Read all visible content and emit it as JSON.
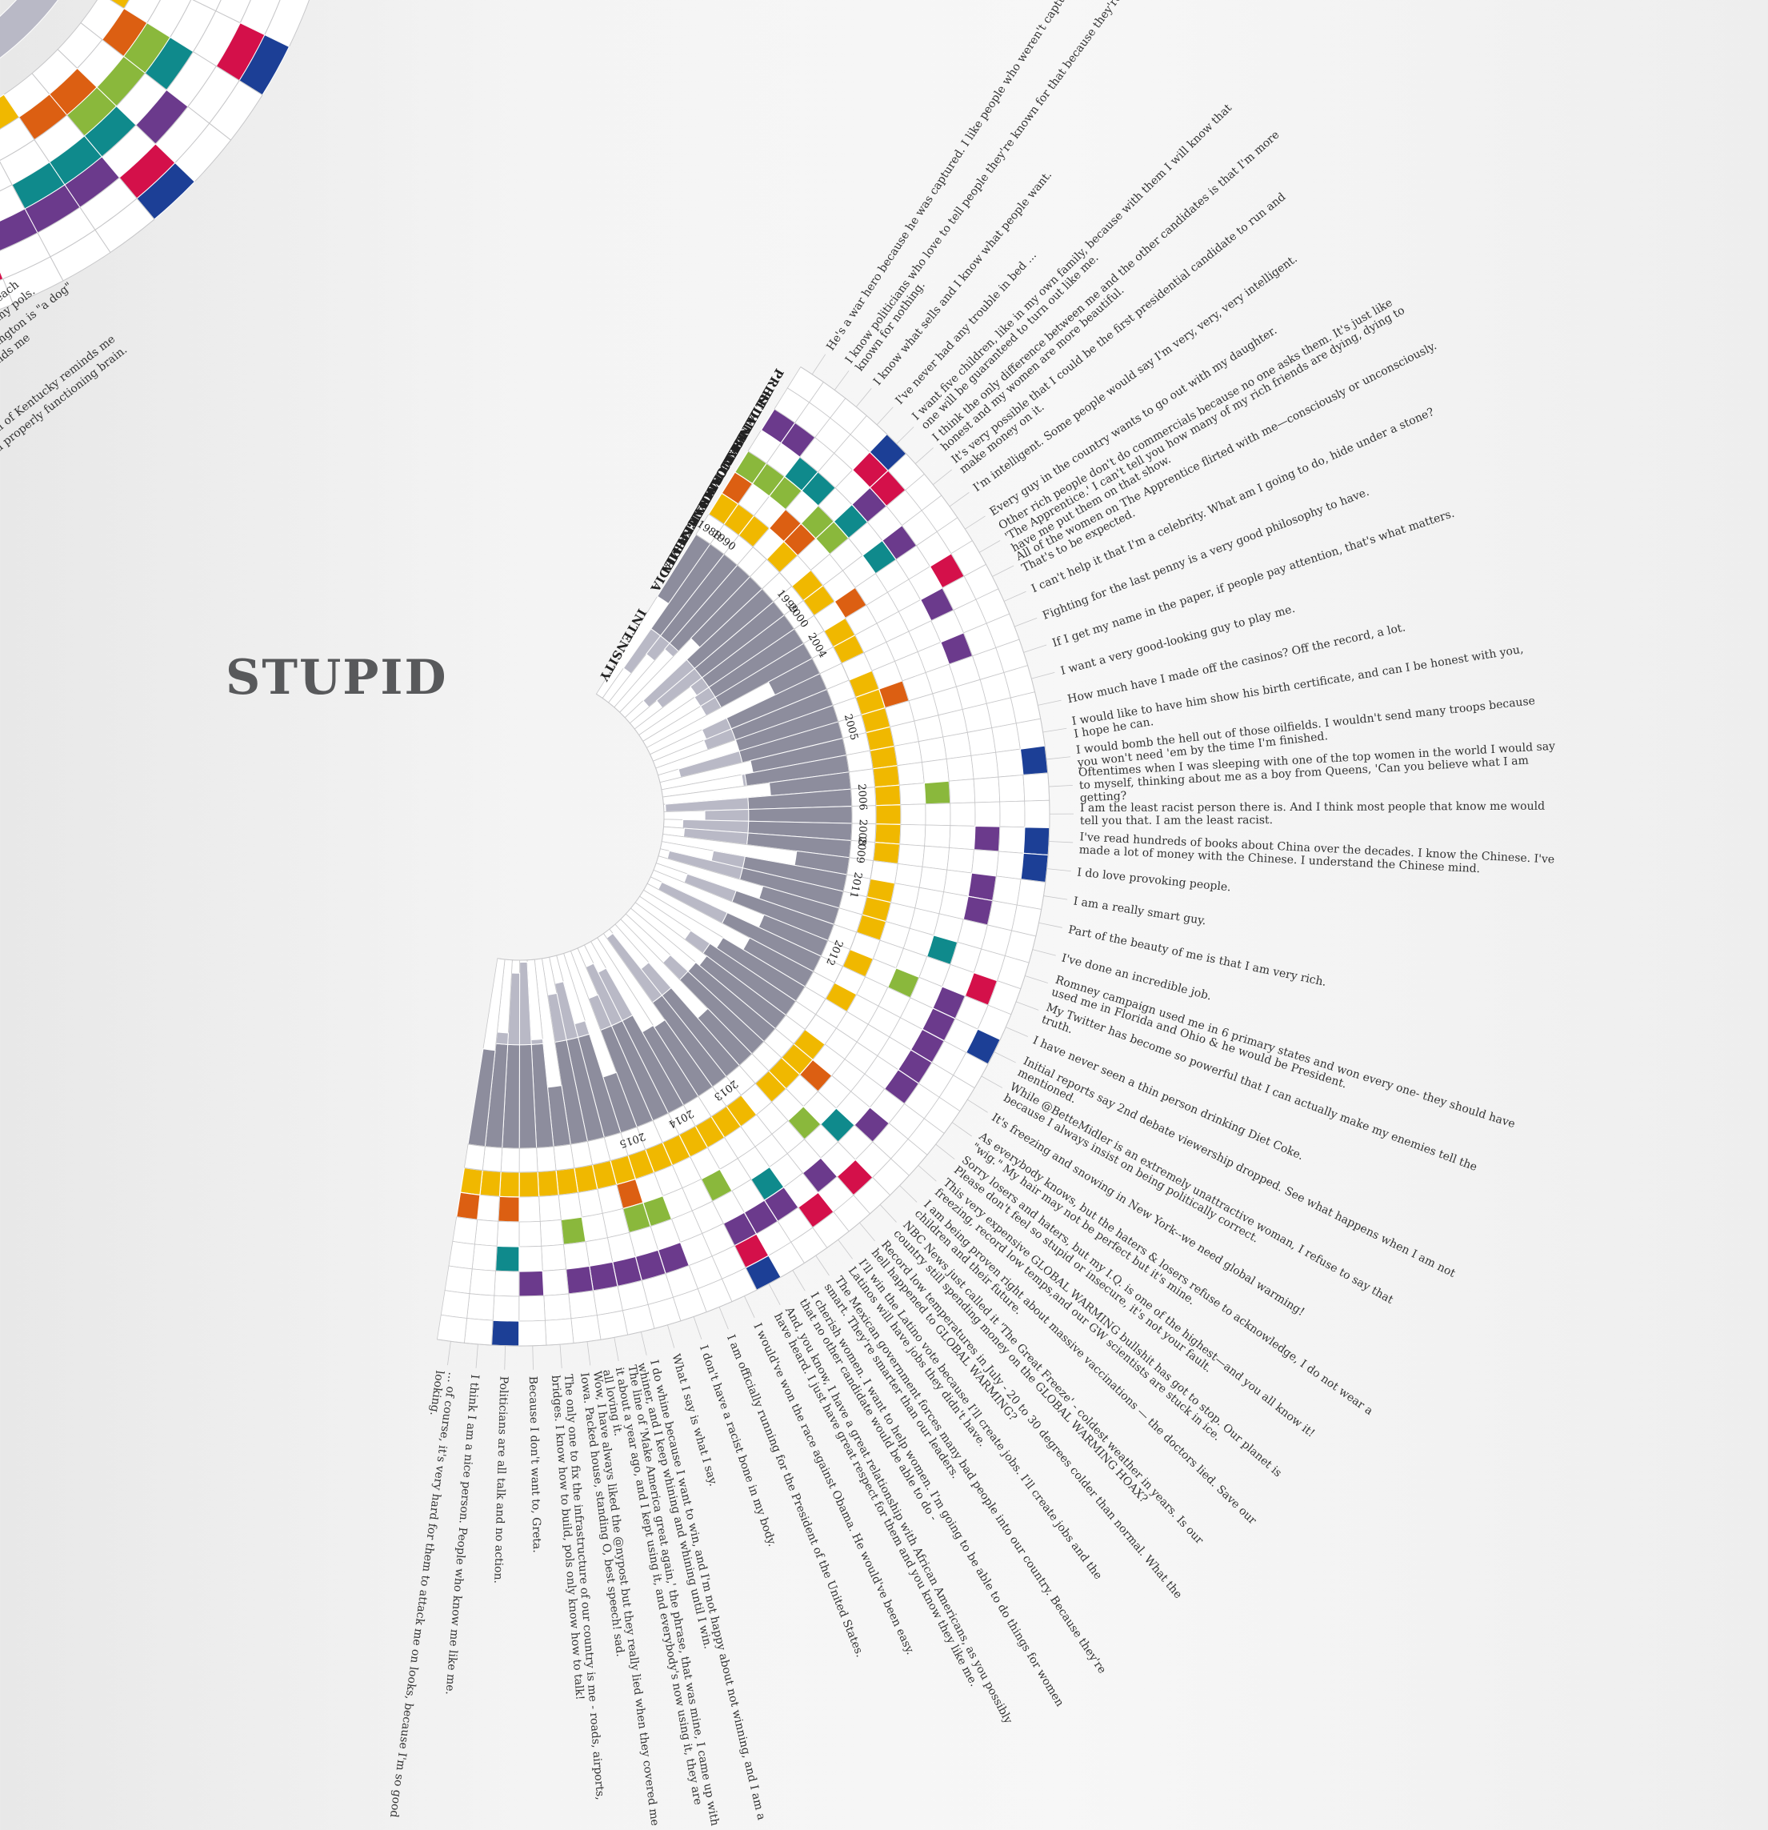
{
  "title": "STUPID",
  "colors": {
    "intensity_dark": "#8d8d9d",
    "intensity_light": "#b9b9c6",
    "other_media": "#f0b800",
    "social_media": "#dc5f12",
    "women": "#8ab83c",
    "men": "#0f8a8c",
    "himself": "#6b3a8c",
    "related_to_race": "#d4104a",
    "presidential_campaign": "#1c3f96",
    "grid": "#c7c7c9"
  },
  "ring_labels": [
    "INTENSITY",
    "YEAR",
    "OTHER MEDIA",
    "SOCIAL MEDIA",
    "WOMEN",
    "MEN",
    "HIMSELF",
    "RELATED TO RACE",
    "PRESIDENTIAL CAMPAIGN"
  ],
  "years": [
    "1988",
    "1990",
    "1999",
    "2000",
    "2004",
    "2005",
    "2006",
    "2008",
    "2009",
    "2011",
    "2012",
    "2013",
    "2014",
    "2015"
  ],
  "left_fragments": [
    "each",
    "my pols.",
    "ington is \"a dog\"",
    "nds me",
    "il of Kentucky reminds me",
    "a properly functioning brain."
  ],
  "quotes": [
    "He's a war hero because he was captured. I like people who weren't captured.",
    "I know politicians who love to tell people they're known for that because they're known for nothing.",
    "I know what sells and I know what people want.",
    "I've never had any trouble in bed ...",
    "I want five children, like in my own family, because with them I will know that one will be guaranteed to turn out like me.",
    "I think the only difference between me and the other candidates is that I'm more honest and my women are more beautiful.",
    "It's very possible that I could be the first presidential candidate to run and make money on it.",
    "I'm intelligent. Some people would say I'm very, very, very intelligent.",
    "Every guy in the country wants to go out with my daughter.",
    "Other rich people don't do commercials because no one asks them. It's just like 'The Apprentice.' I can't tell you how many of my rich friends are dying, dying to have me put them on that show.",
    "All of the women on The Apprentice flirted with me—consciously or unconsciously. That's to be expected.",
    "I can't help it that I'm a celebrity. What am I going to do, hide under a stone?",
    "Fighting for the last penny is a very good philosophy to have.",
    "If I get my name in the paper, if people pay attention, that's what matters.",
    "I want a very good-looking guy to play me.",
    "How much have I made off the casinos? Off the record, a lot.",
    "I would like to have him show his birth certificate, and can I be honest with you, I hope he can.",
    "I would bomb the hell out of those oilfields. I wouldn't send many troops because you won't need 'em by the time I'm finished.",
    "Oftentimes when I was sleeping with one of the top women in the world I would say to myself, thinking about me as a boy from Queens, 'Can you believe what I am getting?",
    "I am the least racist person there is. And I think most people that know me would tell you that. I am the least racist.",
    "I've read hundreds of books about China over the decades. I know the Chinese. I've made a lot of money with the Chinese. I understand the Chinese mind.",
    "I do love provoking people.",
    "I am a really smart guy.",
    "Part of the beauty of me is that I am very rich.",
    "I've done an incredible job.",
    "Romney campaign used me in 6 primary states and won every one- they should have used me in Florida and Ohio & he would be President.",
    "My Twitter has become so powerful that I can actually make my enemies tell the truth.",
    "I have never seen a thin person drinking Diet Coke.",
    "Initial reports say 2nd debate viewership dropped. See what happens when I am not mentioned.",
    "While @BetteMidler is an extremely unattractive woman, I refuse to say that because I always insist on being politically correct.",
    "It's freezing and snowing in New York--we need global warming!",
    "As everybody knows, but the haters & losers refuse to acknowledge, I do not wear a \"wig.\" My hair may not be perfect but it's mine.",
    "Sorry losers and haters, but my I.Q. is one of the highest—and you all know it! Please don't feel so stupid or insecure, it's not your fault.",
    "This very expensive GLOBAL WARMING bullshit has got to stop. Our planet is freezing, record low temps,and our GW scientists are stuck in ice.",
    "I am being proven right about massive vaccinations — the doctors lied. Save our children and their future.",
    "NBC News just called it 'The Great Freeze' - coldest weather in years. Is our country still spending money on the GLOBAL WARMING HOAX?",
    "Record low temperatures in July - 20 to 30 degrees colder than normal. What the hell happened to GLOBAL WARMING?",
    "I'll win the Latino vote because I'll create jobs. I'll create jobs and the Latinos will have jobs they didn't have.",
    "The Mexican government forces many bad people into our country. Because they're smart. They're smarter than our leaders.",
    "I cherish women. I want to help women. I'm going to be able to do things for women that no other candidate would be able to do -",
    "And, you know, I have a great relationship with African Americans, as you possibly have heard. I just have great respect for them and you know they like me.",
    "I would've won the race against Obama. He would've been easy.",
    "I am officially running for the President of the United States.",
    "I don't have a racist bone in my body.",
    "What I say is what I say.",
    "I do whine because I want to win, and I'm not happy about not winning, and I am a whiner, and I keep whining and whining until I win.",
    "The line of 'Make America great again,' the phrase, that was mine, I came up with it about a year ago, and I kept using it, and everybody's now using it, they are all loving it.",
    "Wow, I have always liked the @nypost but they really lied when they covered me in Iowa. Packed house, standing O, best speech! sad.",
    "The only one to fix the infrastructure of our country is me - roads, airports, bridges. I know how to build, pols only know how to talk!",
    "Because I don't want to, Greta.",
    "Politicians are all talk and no action.",
    "I think I am a nice person. People who know me like me.",
    "... of course, it's very hard for them to attack me on looks, because I'm so good looking."
  ]
}
